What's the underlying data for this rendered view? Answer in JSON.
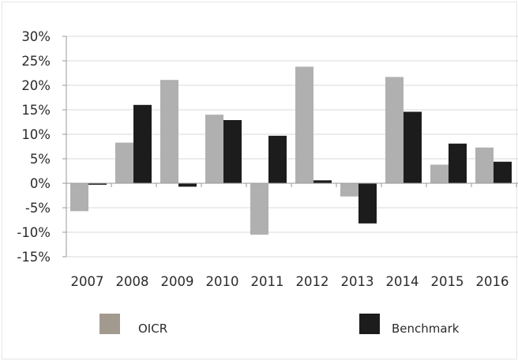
{
  "chart_data": {
    "type": "bar",
    "title": "",
    "xlabel": "",
    "ylabel": "",
    "categories": [
      "2007",
      "2008",
      "2009",
      "2010",
      "2011",
      "2012",
      "2013",
      "2014",
      "2015",
      "2016"
    ],
    "series": [
      {
        "name": "OICR",
        "color": "#b0b0b0",
        "values": [
          -5.7,
          8.3,
          21.1,
          14.0,
          -10.5,
          23.8,
          -2.7,
          21.7,
          3.8,
          7.3
        ]
      },
      {
        "name": "Benchmark",
        "color": "#1c1c1c",
        "values": [
          -0.3,
          16.0,
          -0.7,
          12.9,
          9.7,
          0.6,
          -8.2,
          14.6,
          8.1,
          4.4
        ]
      }
    ],
    "ylim": [
      -15,
      30
    ],
    "ytick_values": [
      -15,
      -10,
      -5,
      0,
      5,
      10,
      15,
      20,
      25,
      30
    ],
    "ytick_labels": [
      "-15%",
      "-10%",
      "-5%",
      "0%",
      "5%",
      "10%",
      "15%",
      "20%",
      "25%",
      "30%"
    ],
    "grid": true,
    "legend_position": "bottom"
  },
  "colors": {
    "legend_oicr_swatch": "#a39a8f",
    "legend_benchmark_swatch": "#1c1c1c"
  }
}
